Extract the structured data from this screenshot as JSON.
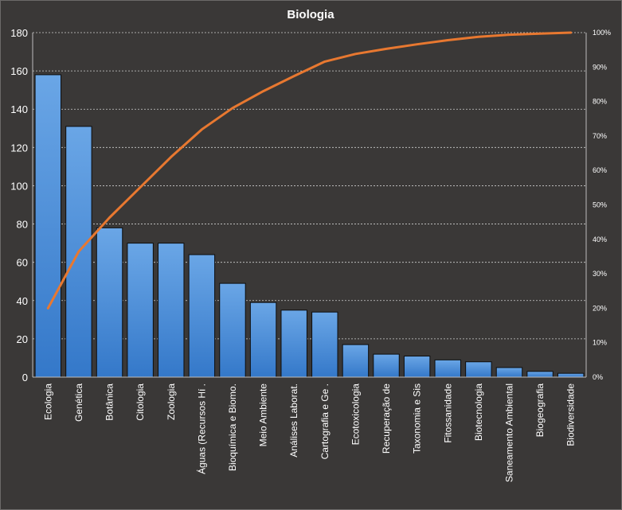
{
  "chart_data": {
    "type": "bar",
    "title": "Biologia",
    "categories": [
      "Ecologia",
      "Genética",
      "Botânica",
      "Citologia",
      "Zoologia",
      "Águas (Recursos Hí .",
      "Bioquímica e Biomo.",
      "Meio Ambiente",
      "Análises Laborat.",
      "Cartografia e Ge .",
      "Ecotoxicologia",
      "Recuperação de",
      "Taxonomia e Sis",
      "Fitossanidade",
      "Biotecnologia",
      "Saneamento Ambiental",
      "Biogeografia",
      "Biodiversidade"
    ],
    "series": [
      {
        "type": "bar",
        "values": [
          158,
          131,
          78,
          70,
          70,
          64,
          49,
          39,
          35,
          34,
          17,
          12,
          11,
          9,
          8,
          5,
          3,
          2
        ],
        "color": "#4a90d9"
      },
      {
        "type": "line",
        "axis": "right",
        "values": [
          20,
          36.5,
          46.3,
          55.1,
          63.9,
          71.9,
          78.1,
          83.0,
          87.4,
          91.6,
          93.8,
          95.3,
          96.6,
          97.8,
          98.8,
          99.4,
          99.7,
          100
        ],
        "color": "#e87830"
      }
    ],
    "ylim": [
      0,
      180
    ],
    "yticks": [
      "0",
      "20",
      "40",
      "60",
      "80",
      "100",
      "120",
      "140",
      "160",
      "180"
    ],
    "y2lim": [
      0,
      100
    ],
    "y2ticks": [
      "0%",
      "10%",
      "20%",
      "30%",
      "40%",
      "50%",
      "60%",
      "70%",
      "80%",
      "90%",
      "100%"
    ],
    "grid": true,
    "legend": "none"
  }
}
